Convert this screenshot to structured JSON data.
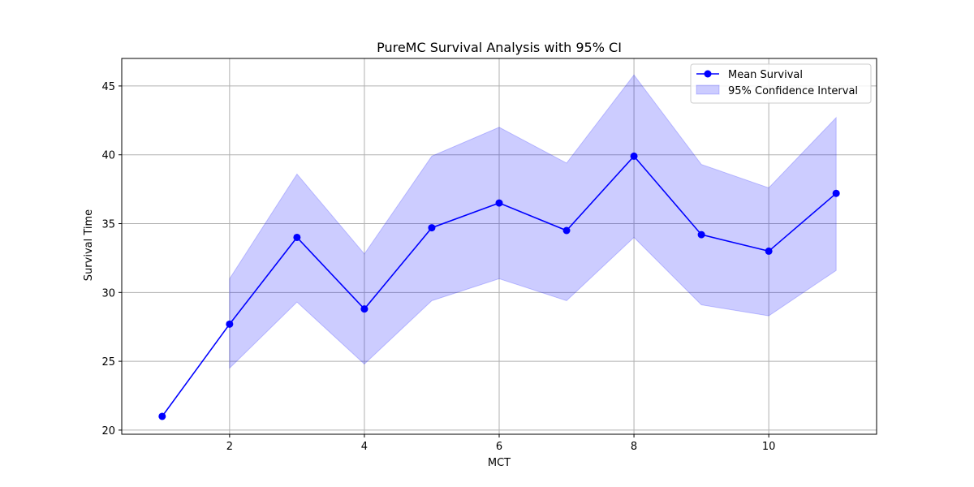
{
  "chart_data": {
    "type": "line",
    "title": "PureMC Survival Analysis with 95% CI",
    "xlabel": "MCT",
    "ylabel": "Survival Time",
    "xlim": [
      0.4,
      11.6
    ],
    "ylim": [
      19.7,
      47.0
    ],
    "xticks": [
      2,
      4,
      6,
      8,
      10
    ],
    "yticks": [
      20,
      25,
      30,
      35,
      40,
      45
    ],
    "grid": true,
    "legend_position": "top-right",
    "series": [
      {
        "name": "Mean Survival",
        "color": "#0000ff",
        "marker": "circle",
        "x": [
          1,
          2,
          3,
          4,
          5,
          6,
          7,
          8,
          9,
          10,
          11
        ],
        "y": [
          21.0,
          27.7,
          34.0,
          28.8,
          34.7,
          36.5,
          34.5,
          39.9,
          34.2,
          33.0,
          37.2
        ]
      }
    ],
    "band": {
      "name": "95% Confidence Interval",
      "color": "#0000ff",
      "opacity": 0.2,
      "x": [
        2,
        3,
        4,
        5,
        6,
        7,
        8,
        9,
        10,
        11
      ],
      "lower": [
        24.5,
        29.3,
        24.8,
        29.4,
        31.0,
        29.4,
        34.0,
        29.1,
        28.3,
        31.6
      ],
      "upper": [
        31.0,
        38.6,
        32.8,
        39.9,
        42.0,
        39.4,
        45.8,
        39.3,
        37.6,
        42.7
      ]
    }
  }
}
